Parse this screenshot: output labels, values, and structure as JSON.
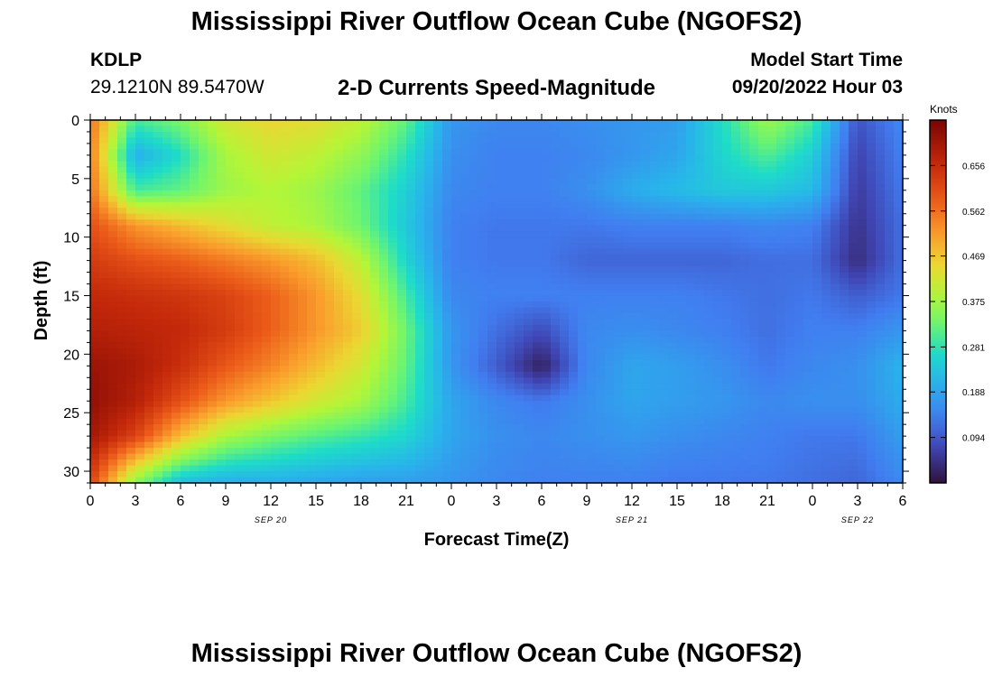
{
  "title": "Mississippi River Outflow Ocean Cube (NGOFS2)",
  "station": {
    "id": "KDLP",
    "coords": "29.1210N  89.5470W"
  },
  "subtitle": "2-D Currents Speed-Magnitude",
  "model_start": {
    "label": "Model Start Time",
    "value": "09/20/2022 Hour 03"
  },
  "bottom_title": "Mississippi River Outflow Ocean Cube (NGOFS2)",
  "chart_data": {
    "type": "heatmap",
    "title": "2-D Currents Speed-Magnitude",
    "xlabel": "Forecast Time(Z)",
    "ylabel": "Depth (ft)",
    "colorbar_label": "Knots",
    "xlim": [
      0,
      54
    ],
    "ylim": [
      31,
      0
    ],
    "x_ticks": [
      0,
      3,
      6,
      9,
      12,
      15,
      18,
      21,
      24,
      27,
      30,
      33,
      36,
      39,
      42,
      45,
      48,
      51,
      54
    ],
    "x_tick_labels": [
      "0",
      "3",
      "6",
      "9",
      "12",
      "15",
      "18",
      "21",
      "0",
      "3",
      "6",
      "9",
      "12",
      "15",
      "18",
      "21",
      "0",
      "3",
      "6"
    ],
    "y_ticks": [
      0,
      5,
      10,
      15,
      20,
      25,
      30
    ],
    "y_tick_labels": [
      "0",
      "5",
      "10",
      "15",
      "20",
      "25",
      "30"
    ],
    "date_labels": [
      {
        "text": "SEP 20",
        "x": 12
      },
      {
        "text": "SEP 21",
        "x": 36
      },
      {
        "text": "SEP 22",
        "x": 51
      }
    ],
    "colorbar_ticks": [
      "0.656",
      "0.562",
      "0.469",
      "0.375",
      "0.281",
      "0.188",
      "0.094"
    ],
    "colorbar_tick_values": [
      0.656,
      0.562,
      0.469,
      0.375,
      0.281,
      0.188,
      0.094
    ],
    "vmin": 0.0,
    "vmax": 0.75,
    "grid_depths": [
      0,
      3,
      6,
      9,
      12,
      15,
      18,
      21,
      24,
      27,
      31
    ],
    "grid_times": [
      0,
      3,
      6,
      9,
      12,
      15,
      18,
      21,
      24,
      27,
      30,
      33,
      36,
      39,
      42,
      45,
      48,
      51,
      54
    ],
    "values": [
      [
        0.56,
        0.3,
        0.34,
        0.42,
        0.45,
        0.44,
        0.4,
        0.32,
        0.17,
        0.15,
        0.15,
        0.16,
        0.17,
        0.18,
        0.27,
        0.37,
        0.3,
        0.09,
        0.15
      ],
      [
        0.55,
        0.2,
        0.27,
        0.38,
        0.42,
        0.4,
        0.36,
        0.28,
        0.16,
        0.14,
        0.14,
        0.15,
        0.17,
        0.19,
        0.26,
        0.31,
        0.25,
        0.07,
        0.14
      ],
      [
        0.56,
        0.3,
        0.32,
        0.37,
        0.39,
        0.37,
        0.32,
        0.25,
        0.15,
        0.14,
        0.14,
        0.16,
        0.2,
        0.22,
        0.24,
        0.24,
        0.22,
        0.06,
        0.13
      ],
      [
        0.6,
        0.52,
        0.48,
        0.44,
        0.4,
        0.38,
        0.33,
        0.24,
        0.14,
        0.13,
        0.13,
        0.13,
        0.14,
        0.14,
        0.14,
        0.15,
        0.14,
        0.05,
        0.12
      ],
      [
        0.63,
        0.6,
        0.58,
        0.55,
        0.52,
        0.48,
        0.4,
        0.26,
        0.14,
        0.13,
        0.13,
        0.11,
        0.11,
        0.11,
        0.11,
        0.12,
        0.12,
        0.04,
        0.12
      ],
      [
        0.66,
        0.65,
        0.64,
        0.62,
        0.58,
        0.52,
        0.44,
        0.3,
        0.15,
        0.14,
        0.14,
        0.14,
        0.14,
        0.14,
        0.13,
        0.12,
        0.13,
        0.1,
        0.13
      ],
      [
        0.68,
        0.67,
        0.66,
        0.63,
        0.58,
        0.52,
        0.46,
        0.33,
        0.17,
        0.12,
        0.08,
        0.15,
        0.16,
        0.15,
        0.14,
        0.12,
        0.14,
        0.14,
        0.17
      ],
      [
        0.71,
        0.69,
        0.65,
        0.59,
        0.54,
        0.48,
        0.42,
        0.32,
        0.17,
        0.1,
        0.02,
        0.15,
        0.19,
        0.18,
        0.16,
        0.13,
        0.15,
        0.16,
        0.21
      ],
      [
        0.72,
        0.68,
        0.6,
        0.52,
        0.47,
        0.42,
        0.38,
        0.3,
        0.19,
        0.15,
        0.13,
        0.16,
        0.19,
        0.18,
        0.17,
        0.15,
        0.16,
        0.16,
        0.2
      ],
      [
        0.7,
        0.62,
        0.48,
        0.38,
        0.34,
        0.31,
        0.29,
        0.26,
        0.19,
        0.16,
        0.15,
        0.16,
        0.17,
        0.16,
        0.15,
        0.14,
        0.13,
        0.13,
        0.18
      ],
      [
        0.62,
        0.35,
        0.22,
        0.2,
        0.2,
        0.19,
        0.18,
        0.18,
        0.17,
        0.15,
        0.14,
        0.14,
        0.14,
        0.13,
        0.13,
        0.13,
        0.12,
        0.11,
        0.15
      ]
    ]
  }
}
